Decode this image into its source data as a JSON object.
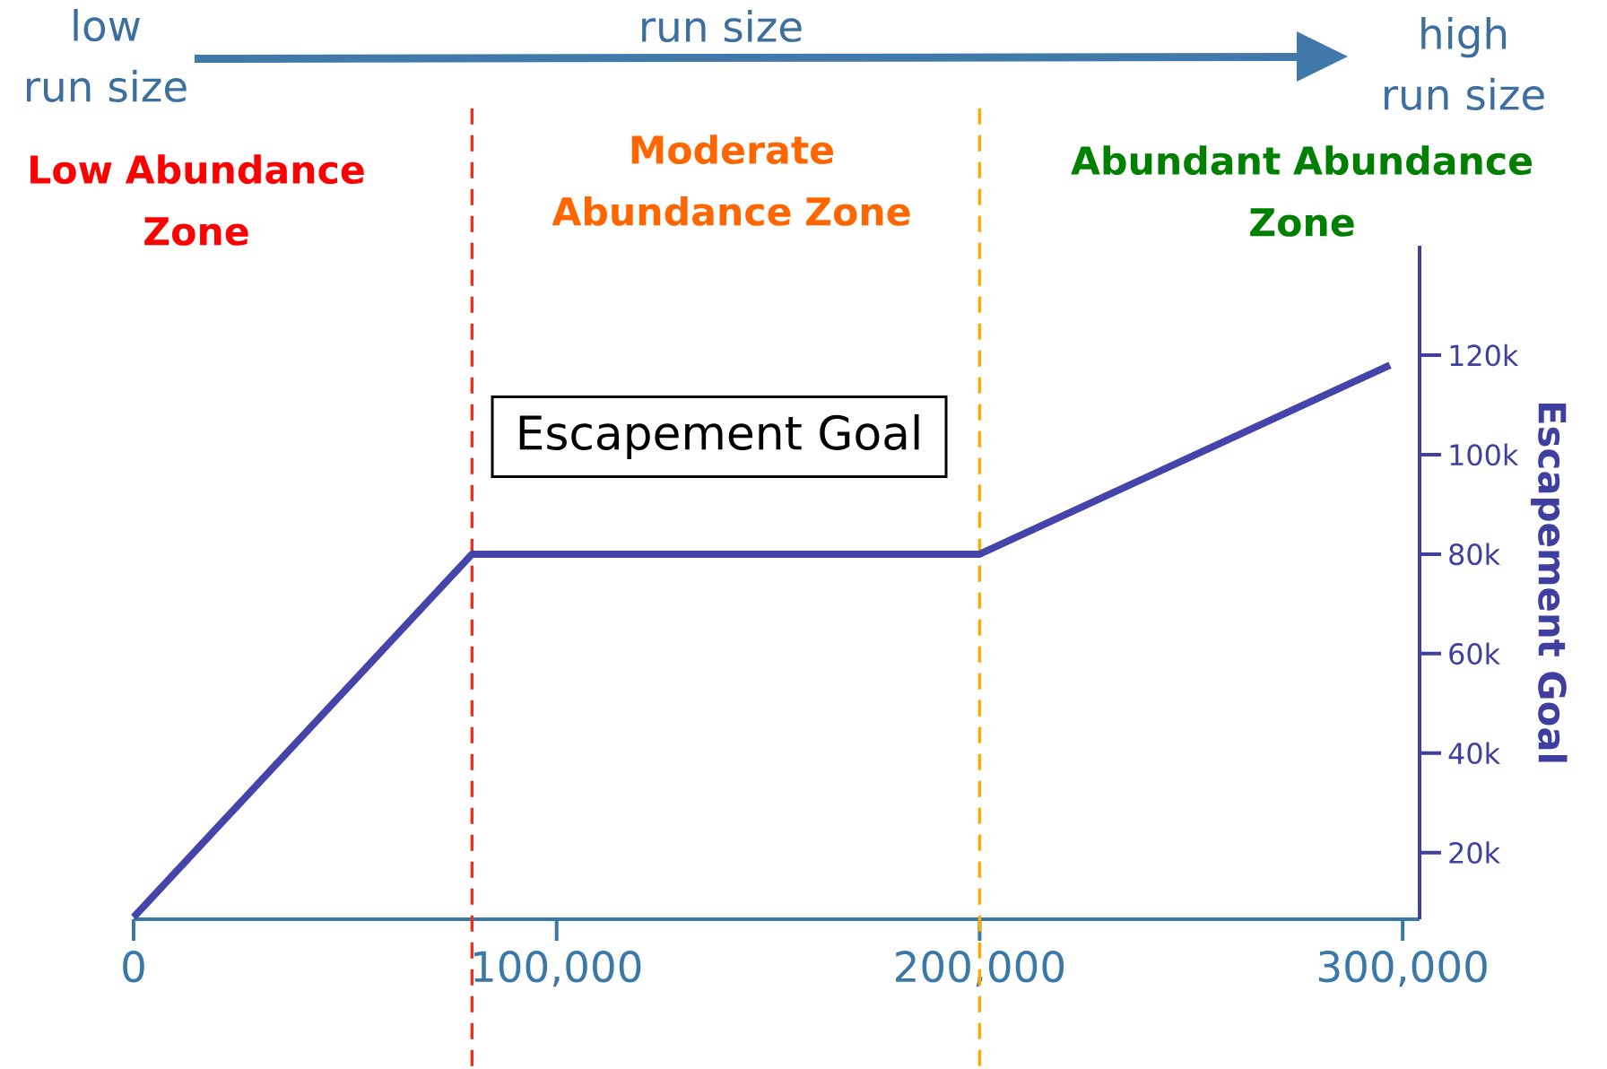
{
  "chart_data": {
    "type": "line",
    "y2label": "Escapement Goal",
    "x": [
      0,
      80000,
      200000,
      297000
    ],
    "series": [
      {
        "color": "#4444aa",
        "axis": "y2",
        "values": [
          7000,
          80000,
          80000,
          118000
        ]
      }
    ],
    "xlim": [
      0,
      304000
    ],
    "xticks": [
      0,
      {
        "value": 100000,
        "label": "100,000"
      },
      {
        "value": 200000,
        "label": "200,000"
      },
      {
        "value": 300000,
        "label": "300,000"
      }
    ],
    "y2lim": [
      6600,
      142000
    ],
    "y2ticks": [
      {
        "value": 20000,
        "label": "20k"
      },
      {
        "value": 40000,
        "label": "40k"
      },
      {
        "value": 60000,
        "label": "60k"
      },
      {
        "value": 80000,
        "label": "80k"
      },
      {
        "value": 100000,
        "label": "100k"
      },
      {
        "value": 120000,
        "label": "120k"
      }
    ],
    "ref_lines": [
      {
        "axis": "x",
        "value": 80000,
        "color": "#e8321e",
        "line_style": "dashed"
      },
      {
        "axis": "x",
        "value": 200000,
        "color": "#ffaa00",
        "line_style": "dashed"
      }
    ],
    "annotations": [
      "low run size",
      "run size",
      "high run size",
      "Low Abundance Zone",
      "Moderate Abundance Zone",
      "Abundant Abundance Zone",
      "Escapement Goal"
    ],
    "grid": false,
    "marker": "none",
    "line_style": "solid"
  }
}
